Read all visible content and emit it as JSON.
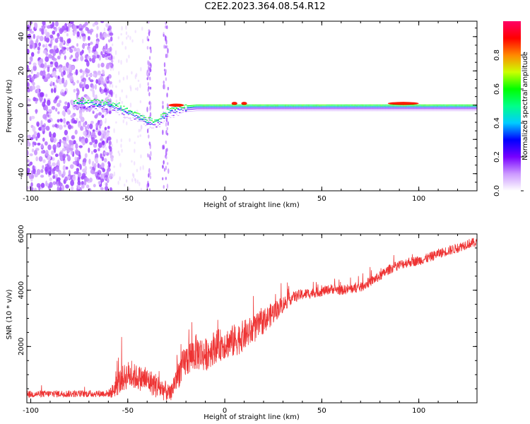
{
  "title": "C2E2.2023.364.08.54.R12",
  "chart_data": [
    {
      "type": "heatmap",
      "xlabel": "Height of straight line (km)",
      "ylabel": "Frequency (Hz)",
      "xlim": [
        -102,
        130
      ],
      "ylim": [
        -50,
        49
      ],
      "x_ticks": [
        -100,
        -50,
        0,
        50,
        100
      ],
      "y_ticks": [
        -40,
        -20,
        0,
        20,
        40
      ],
      "colorbar": {
        "label": "Normalized spectral amplitude",
        "range": [
          0,
          1
        ],
        "ticks": [
          0.0,
          0.2,
          0.4,
          0.6,
          0.8
        ],
        "tick_labels": [
          "0.0",
          "0.2",
          "0.4",
          "0.6",
          "0.8"
        ],
        "colors": [
          "#ffffff",
          "#cc99ff",
          "#7700ff",
          "#0000ff",
          "#00ccff",
          "#00ff88",
          "#00ff00",
          "#ccff00",
          "#ff8800",
          "#ff0000",
          "#ff0066"
        ]
      },
      "noise_region": {
        "x": [
          -102,
          -58
        ],
        "y": [
          -50,
          49
        ]
      },
      "noise_bands_x": [
        [
          -40,
          -38
        ],
        [
          -32,
          -29
        ]
      ],
      "band": [
        {
          "x": -78,
          "y": 4
        },
        {
          "x": -70,
          "y": 3
        },
        {
          "x": -60,
          "y": 3
        },
        {
          "x": -55,
          "y": 1
        },
        {
          "x": -50,
          "y": -2
        },
        {
          "x": -45,
          "y": -4
        },
        {
          "x": -40,
          "y": -7
        },
        {
          "x": -35,
          "y": -8
        },
        {
          "x": -30,
          "y": -2
        },
        {
          "x": -25,
          "y": 0
        },
        {
          "x": -15,
          "y": 1
        },
        {
          "x": 0,
          "y": 1
        },
        {
          "x": 50,
          "y": 1
        },
        {
          "x": 100,
          "y": 1
        },
        {
          "x": 130,
          "y": 1
        }
      ],
      "hot_spots": [
        {
          "x": -25,
          "y": 0,
          "w": 8
        },
        {
          "x": 5,
          "y": 1,
          "w": 3
        },
        {
          "x": 10,
          "y": 1,
          "w": 3
        },
        {
          "x": 92,
          "y": 1,
          "w": 16
        }
      ]
    },
    {
      "type": "line",
      "xlabel": "Height of straight line (km)",
      "ylabel": "SNR (10 * v/v)",
      "xlim": [
        -102,
        130
      ],
      "ylim": [
        0,
        6000
      ],
      "x_ticks": [
        -100,
        -50,
        0,
        50,
        100
      ],
      "y_ticks": [
        2000,
        4000,
        6000
      ],
      "series": [
        {
          "color": "#ee3333",
          "x": [
            -102,
            -90,
            -80,
            -70,
            -60,
            -58,
            -55,
            -50,
            -45,
            -40,
            -35,
            -30,
            -28,
            -25,
            -20,
            -15,
            -10,
            -5,
            0,
            5,
            10,
            15,
            20,
            25,
            30,
            35,
            40,
            45,
            50,
            55,
            60,
            65,
            70,
            75,
            80,
            85,
            90,
            95,
            100,
            105,
            110,
            115,
            120,
            125,
            130
          ],
          "values": [
            300,
            320,
            320,
            320,
            330,
            400,
            700,
            1000,
            900,
            800,
            600,
            400,
            300,
            900,
            1500,
            1800,
            1700,
            2000,
            2100,
            2200,
            2400,
            2600,
            2900,
            3200,
            3500,
            3750,
            3850,
            3900,
            3950,
            4050,
            4000,
            4050,
            4100,
            4300,
            4500,
            4750,
            4900,
            5000,
            5050,
            5150,
            5300,
            5400,
            5500,
            5650,
            5700
          ],
          "spread": [
            250,
            250,
            250,
            250,
            250,
            500,
            900,
            1000,
            900,
            900,
            900,
            700,
            500,
            1000,
            1200,
            1300,
            1200,
            1200,
            1100,
            1200,
            1100,
            1000,
            900,
            800,
            600,
            400,
            400,
            350,
            350,
            350,
            350,
            350,
            350,
            350,
            350,
            350,
            350,
            350,
            350,
            350,
            350,
            350,
            350,
            350,
            350
          ]
        }
      ]
    }
  ]
}
